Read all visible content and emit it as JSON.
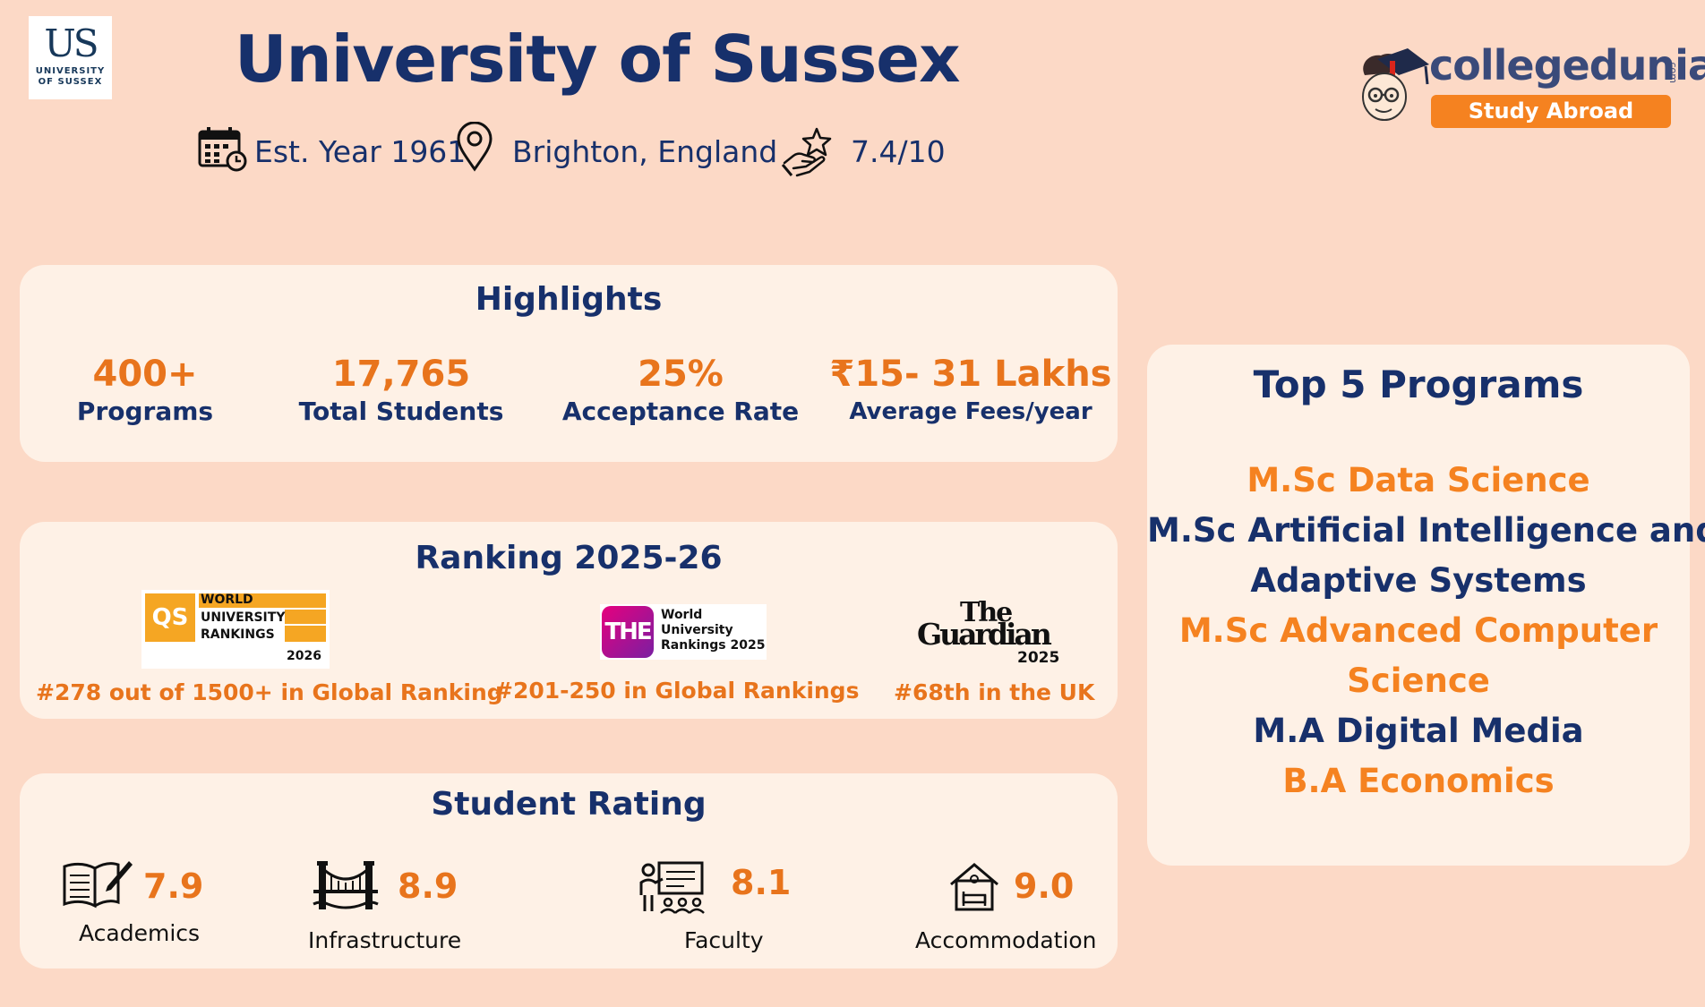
{
  "header": {
    "logo": {
      "monogram": "US",
      "line1": "UNIVERSITY",
      "line2": "OF SUSSEX"
    },
    "title": "University of Sussex",
    "meta": {
      "established": "Est. Year 1961",
      "location": "Brighton, England",
      "rating": "7.4/10"
    },
    "brand": {
      "name": "collegedunia",
      "suffix": ".com",
      "badge": "Study Abroad"
    }
  },
  "highlights": {
    "title": "Highlights",
    "items": [
      {
        "value": "400+",
        "label": "Programs"
      },
      {
        "value": "17,765",
        "label": "Total Students"
      },
      {
        "value": "25%",
        "label": "Acceptance Rate"
      },
      {
        "value": "₹15- 31 Lakhs",
        "label": "Average Fees/year"
      }
    ]
  },
  "ranking": {
    "title": "Ranking 2025-26",
    "qs": {
      "logo_mark": "QS",
      "logo_line1": "WORLD",
      "logo_line2": "UNIVERSITY",
      "logo_line3": "RANKINGS",
      "logo_year": "2026",
      "text": "#278 out of 1500+ in Global Ranking"
    },
    "the": {
      "logo_mark": "THE",
      "logo_line1": "World",
      "logo_line2": "University",
      "logo_line3": "Rankings 2025",
      "text": "#201-250 in Global Rankings"
    },
    "guardian": {
      "logo_line1": "The",
      "logo_line2": "Guardian",
      "logo_year": "2025",
      "text": "#68th in the UK"
    }
  },
  "student_rating": {
    "title": "Student Rating",
    "items": [
      {
        "value": "7.9",
        "label": "Academics"
      },
      {
        "value": "8.9",
        "label": "Infrastructure"
      },
      {
        "value": "8.1",
        "label": "Faculty"
      },
      {
        "value": "9.0",
        "label": "Accommodation"
      }
    ]
  },
  "top_programs": {
    "title": "Top 5 Programs",
    "lines": [
      "M.Sc Data Science",
      "M.Sc Artificial Intelligence and",
      "Adaptive Systems",
      "M.Sc Advanced Computer",
      "Science",
      "M.A Digital Media",
      "B.A Economics"
    ]
  },
  "colors": {
    "background": "#fcd9c6",
    "card": "#fef1e6",
    "navy": "#17306b",
    "orange": "#f58220",
    "value_orange": "#e8741c"
  }
}
